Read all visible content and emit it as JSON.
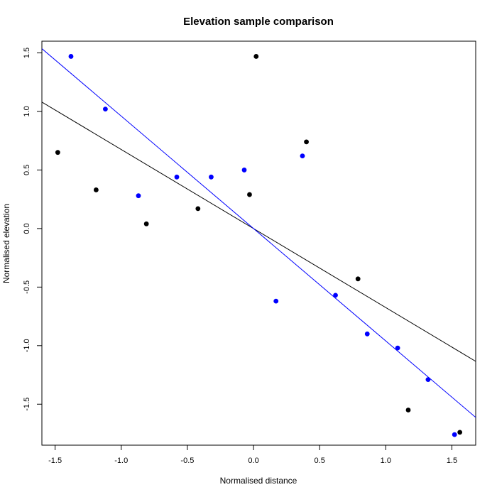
{
  "chart_data": {
    "type": "scatter",
    "title": "Elevation sample comparison",
    "xlabel": "Normalised distance",
    "ylabel": "Normalised elevation",
    "xlim": [
      -1.6,
      1.68
    ],
    "ylim": [
      -1.85,
      1.6
    ],
    "xticks": [
      -1.5,
      -1.0,
      -0.5,
      0.0,
      0.5,
      1.0,
      1.5
    ],
    "xtick_labels": [
      "-1.5",
      "-1.0",
      "-0.5",
      "0.0",
      "0.5",
      "1.0",
      "1.5"
    ],
    "yticks": [
      -1.5,
      -1.0,
      -0.5,
      0.0,
      0.5,
      1.0,
      1.5
    ],
    "ytick_labels": [
      "-1.5",
      "-1.0",
      "-0.5",
      "0.0",
      "0.5",
      "1.0",
      "1.5"
    ],
    "grid": false,
    "series": [
      {
        "color": "#000000",
        "points": [
          {
            "x": -1.48,
            "y": 0.65
          },
          {
            "x": -1.19,
            "y": 0.33
          },
          {
            "x": -0.81,
            "y": 0.04
          },
          {
            "x": -0.42,
            "y": 0.17
          },
          {
            "x": -0.03,
            "y": 0.29
          },
          {
            "x": 0.02,
            "y": 1.47
          },
          {
            "x": 0.4,
            "y": 0.74
          },
          {
            "x": 0.79,
            "y": -0.43
          },
          {
            "x": 1.17,
            "y": -1.55
          },
          {
            "x": 1.56,
            "y": -1.74
          }
        ],
        "fit": {
          "slope": -0.675,
          "intercept": 0.0
        }
      },
      {
        "color": "#0000ff",
        "points": [
          {
            "x": -1.38,
            "y": 1.47
          },
          {
            "x": -1.12,
            "y": 1.02
          },
          {
            "x": -0.87,
            "y": 0.28
          },
          {
            "x": -0.58,
            "y": 0.44
          },
          {
            "x": -0.32,
            "y": 0.44
          },
          {
            "x": -0.07,
            "y": 0.5
          },
          {
            "x": 0.17,
            "y": -0.62
          },
          {
            "x": 0.37,
            "y": 0.62
          },
          {
            "x": 0.62,
            "y": -0.57
          },
          {
            "x": 0.86,
            "y": -0.9
          },
          {
            "x": 1.09,
            "y": -1.02
          },
          {
            "x": 1.32,
            "y": -1.29
          },
          {
            "x": 1.52,
            "y": -1.76
          }
        ],
        "fit": {
          "slope": -0.96,
          "intercept": 0.0
        }
      }
    ]
  }
}
